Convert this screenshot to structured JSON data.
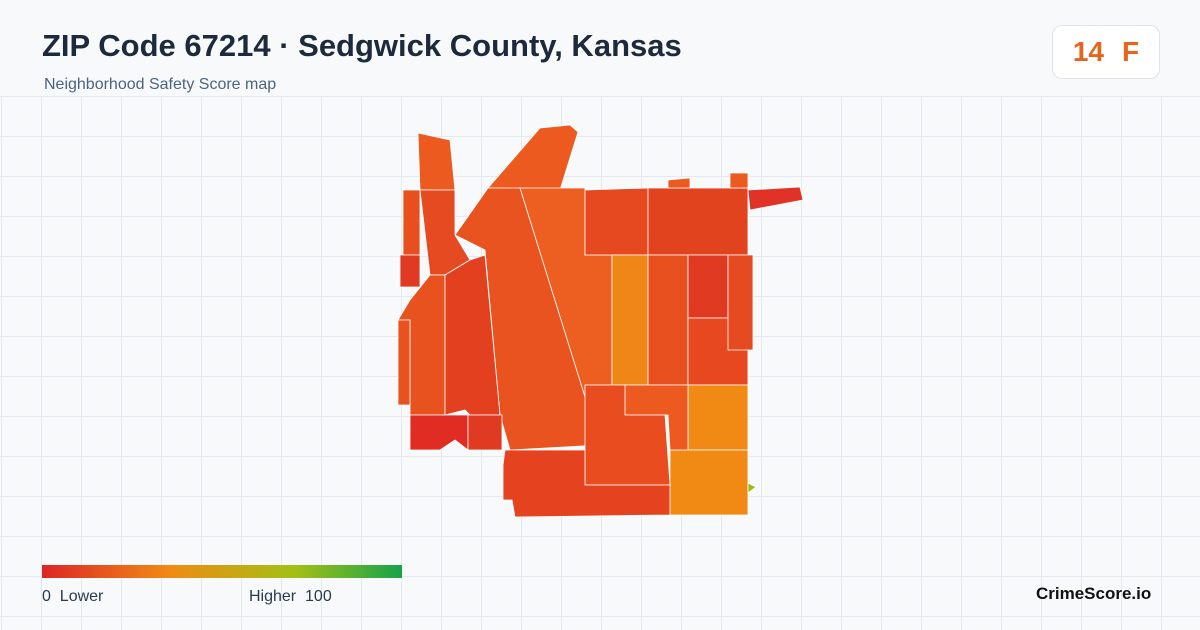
{
  "header": {
    "title": "ZIP Code 67214 · Sedgwick County, Kansas",
    "subtitle": "Neighborhood Safety Score map"
  },
  "score": {
    "value": "14",
    "grade": "F"
  },
  "legend": {
    "min": "0",
    "min_label": "Lower",
    "max_label": "Higher",
    "max": "100"
  },
  "brand": "CrimeScore.io"
}
